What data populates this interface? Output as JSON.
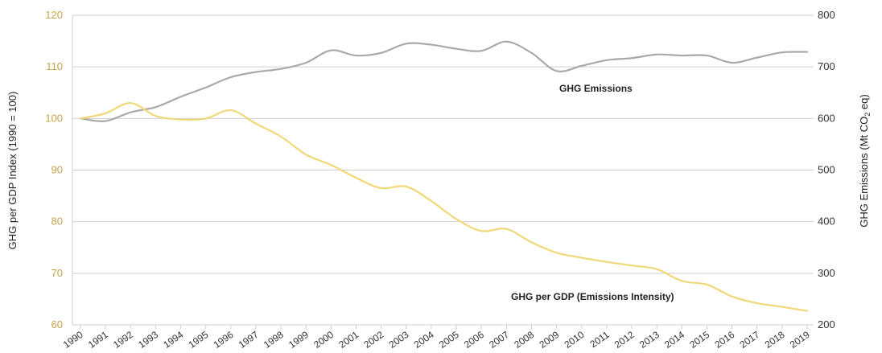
{
  "chart_data": {
    "type": "line",
    "x": [
      "1990",
      "1991",
      "1992",
      "1993",
      "1994",
      "1995",
      "1996",
      "1997",
      "1998",
      "1999",
      "2000",
      "2001",
      "2002",
      "2003",
      "2004",
      "2005",
      "2006",
      "2007",
      "2008",
      "2009",
      "2010",
      "2011",
      "2012",
      "2013",
      "2014",
      "2015",
      "2016",
      "2017",
      "2018",
      "2019"
    ],
    "series": [
      {
        "name": "GHG Emissions",
        "axis": "right",
        "color": "#a9a9a9",
        "values": [
          600,
          595,
          612,
          622,
          642,
          660,
          680,
          690,
          696,
          708,
          732,
          722,
          727,
          745,
          743,
          735,
          731,
          749,
          727,
          692,
          702,
          713,
          717,
          724,
          722,
          722,
          708,
          718,
          728,
          729
        ]
      },
      {
        "name": "GHG per GDP (Emissions Intensity)",
        "axis": "left",
        "color": "#f0d878",
        "values": [
          100,
          101,
          103,
          100.5,
          99.8,
          100,
          101.6,
          99,
          96.5,
          93,
          91,
          88.5,
          86.5,
          86.8,
          84,
          80.5,
          78.2,
          78.6,
          76,
          74,
          73,
          72.2,
          71.5,
          70.8,
          68.5,
          67.8,
          65.5,
          64.2,
          63.5,
          62.7
        ]
      }
    ],
    "y_left": {
      "label": "GHG per GDP Index (1990 = 100)",
      "range": [
        60,
        120
      ],
      "ticks": [
        "60",
        "70",
        "80",
        "90",
        "100",
        "110",
        "120"
      ],
      "color": "#c8a24a"
    },
    "y_right": {
      "label_main": "GHG Emissions (Mt CO",
      "label_sub": "2",
      "label_end": " eq)",
      "range": [
        200,
        800
      ],
      "ticks": [
        "200",
        "300",
        "400",
        "500",
        "600",
        "700",
        "800"
      ]
    },
    "annotations": [
      "GHG Emissions",
      "GHG per GDP (Emissions Intensity)"
    ],
    "grid": true
  }
}
